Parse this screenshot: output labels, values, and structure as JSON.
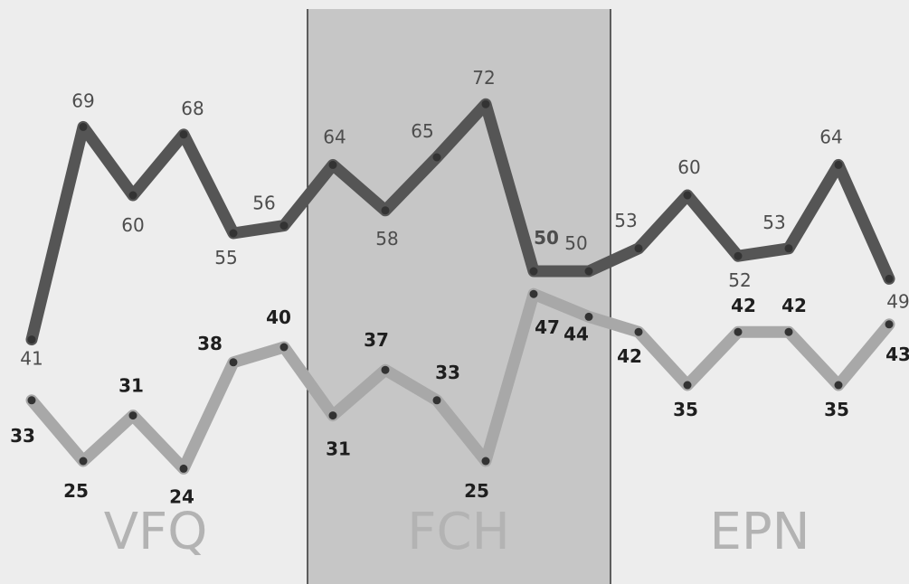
{
  "chart_data": {
    "type": "line",
    "sections": [
      "VFQ",
      "FCH",
      "EPN"
    ],
    "shaded_section": "FCH",
    "series": [
      {
        "color": "#555555",
        "label_style": "normal",
        "values": [
          41,
          69,
          60,
          68,
          55,
          56,
          64,
          58,
          65,
          72,
          50,
          50,
          53,
          60,
          52,
          53,
          64,
          49
        ]
      },
      {
        "color": "#a8a8a8",
        "label_style": "bold",
        "values": [
          33,
          25,
          31,
          24,
          38,
          40,
          31,
          37,
          33,
          25,
          47,
          44,
          42,
          35,
          42,
          42,
          35,
          43
        ]
      }
    ]
  }
}
